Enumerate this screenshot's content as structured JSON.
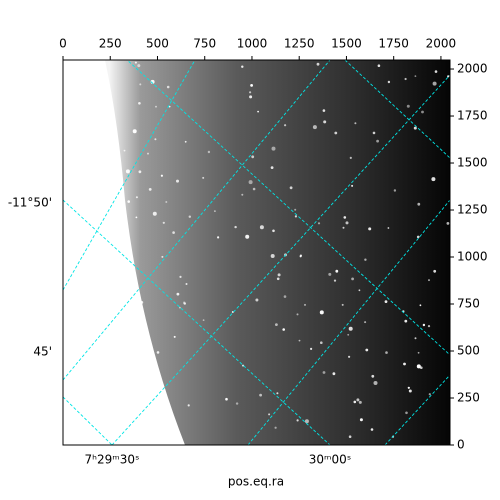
{
  "chart_data": {
    "type": "image",
    "xlabel": "pos.eq.ra",
    "xlim": [
      0,
      2048
    ],
    "xticks": [
      0,
      250,
      500,
      750,
      1000,
      1250,
      1500,
      1750,
      2000
    ],
    "ylim": [
      0,
      2048
    ],
    "yticks": [
      0,
      250,
      500,
      750,
      1000,
      1250,
      1500,
      1750,
      2000
    ],
    "ra_ticks": [
      "7ʰ29ᵐ30ˢ",
      "30ᵐ00ˢ"
    ],
    "dec_ticks": [
      "-11°50'",
      "45'"
    ],
    "grid_color": "#00e5e5"
  }
}
